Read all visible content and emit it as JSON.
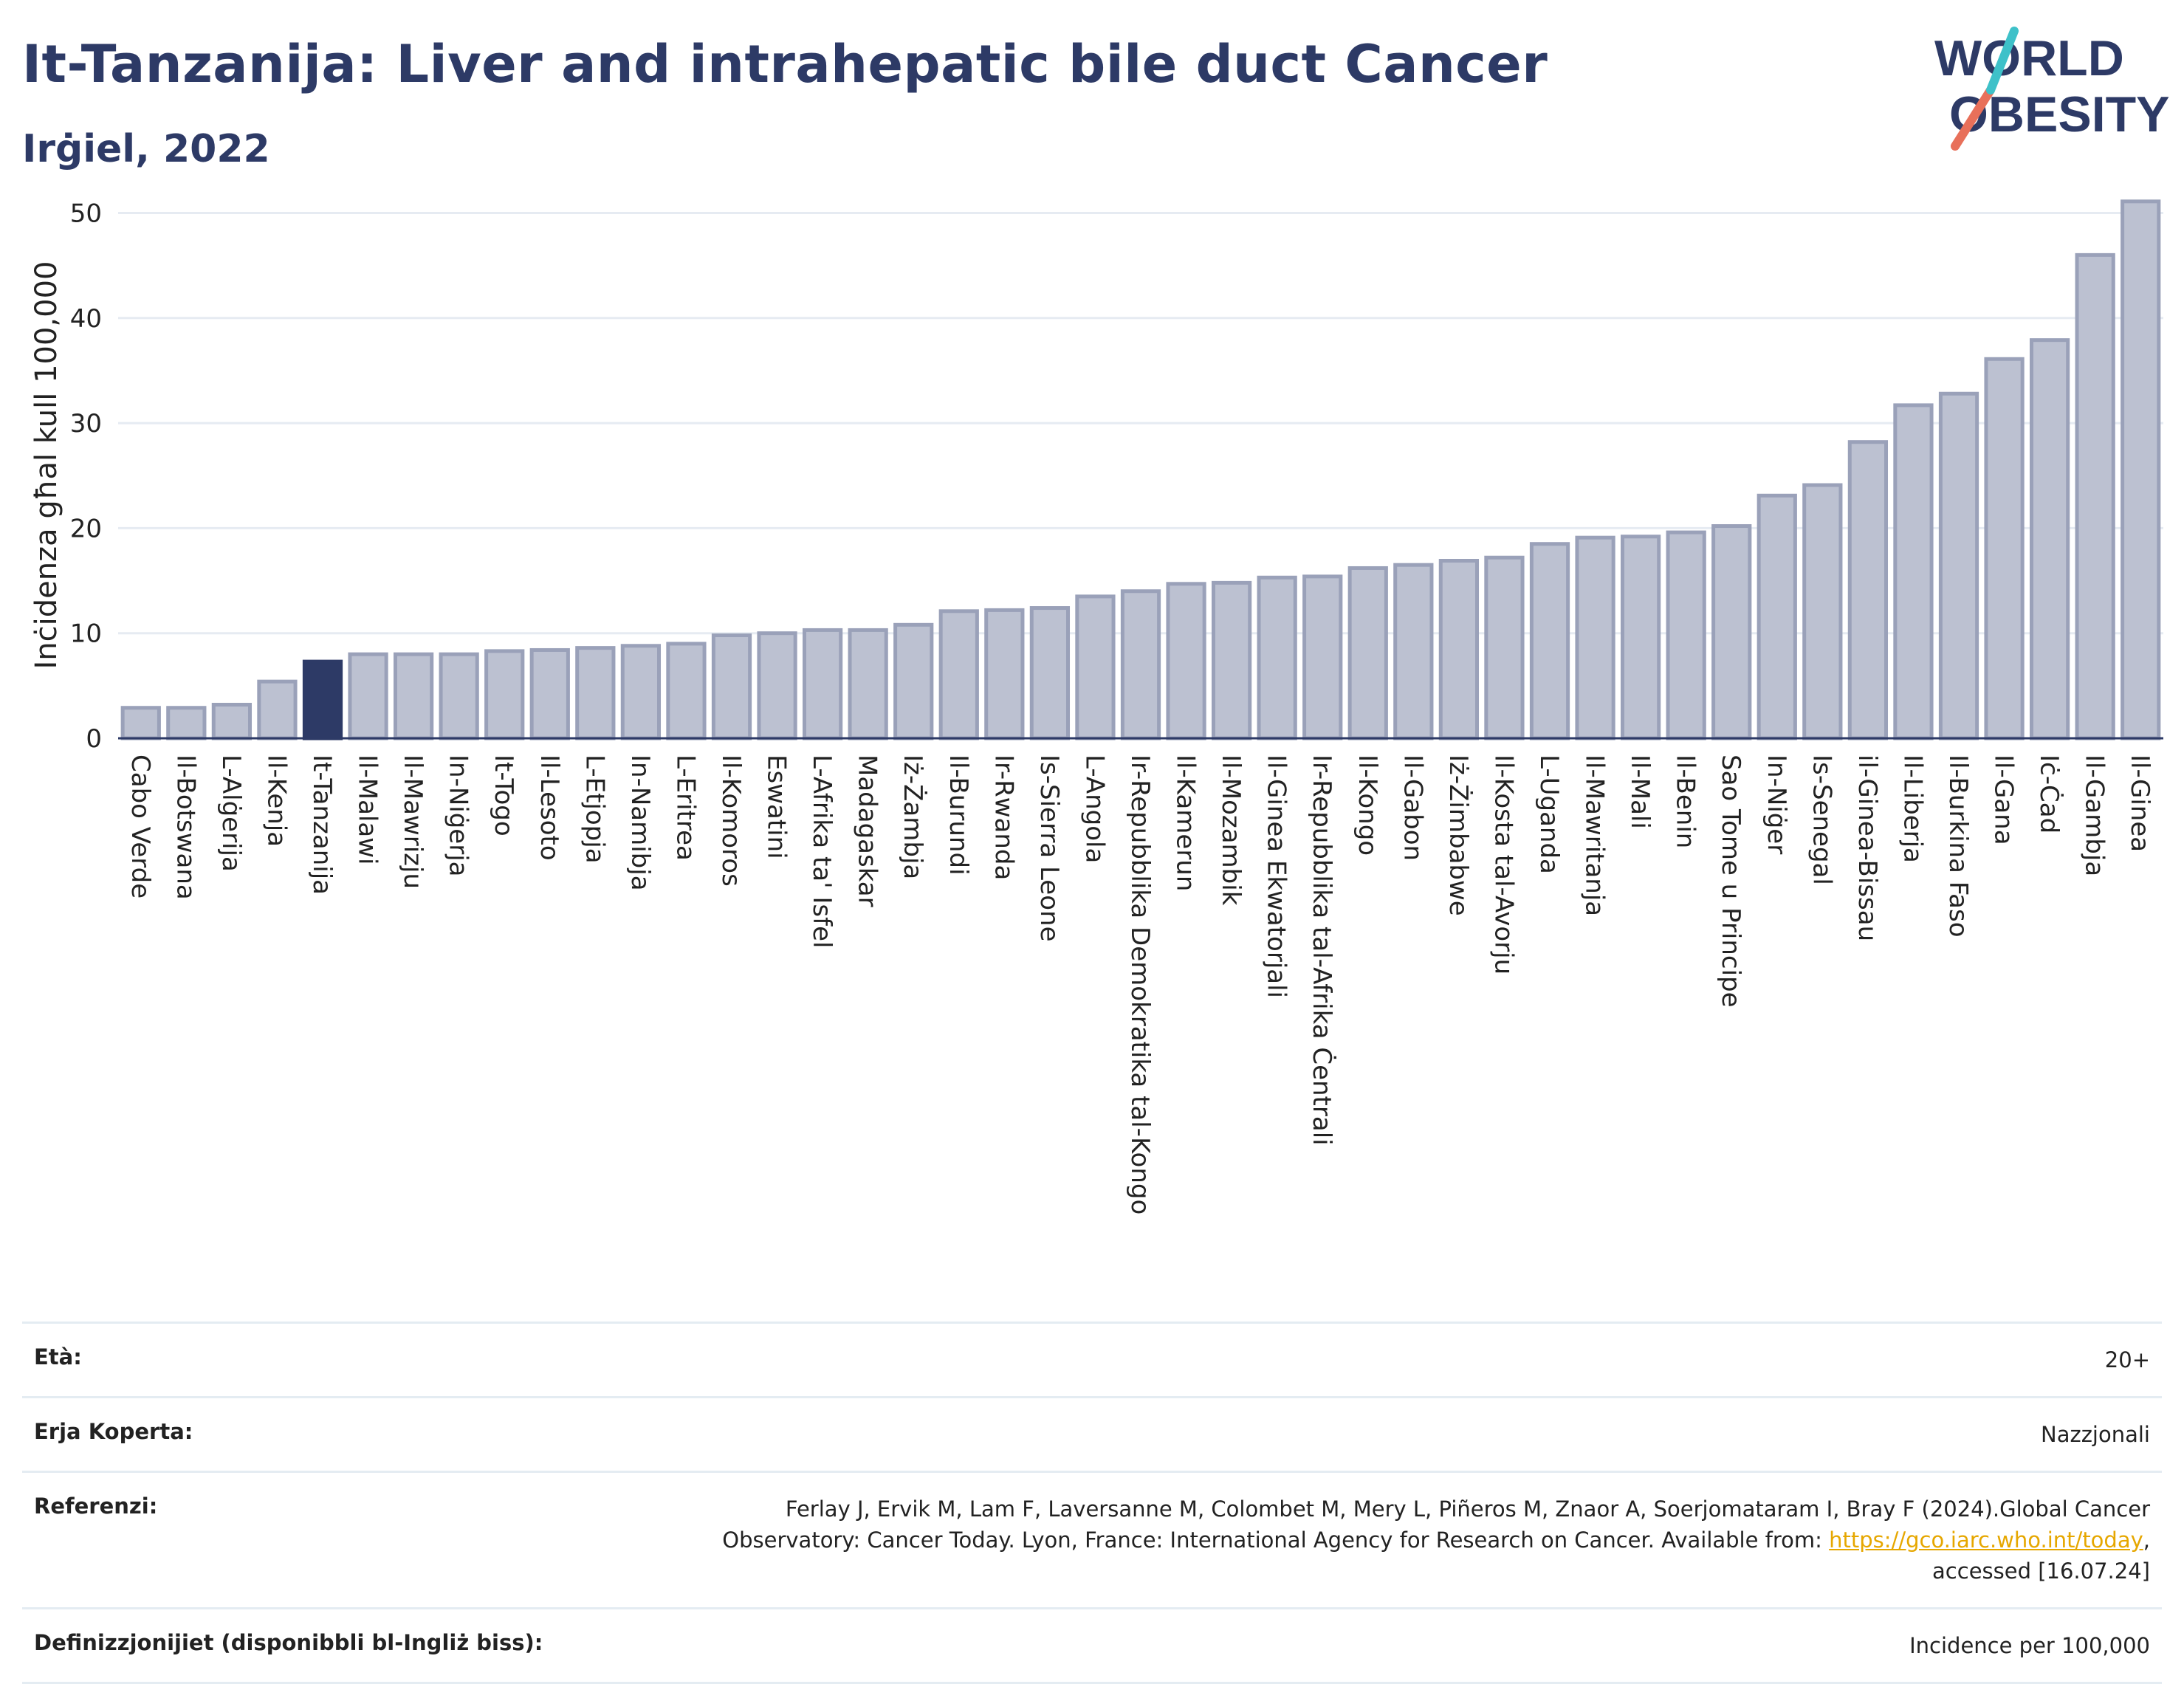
{
  "header": {
    "title": "It-Tanzanija: Liver and intrahepatic bile duct Cancer",
    "subtitle": "Irġiel, 2022"
  },
  "logo": {
    "line1": "WORLD",
    "line2": "OBESITY"
  },
  "colors": {
    "bar": "#bcc1d1",
    "bar_stroke": "#9aa1b9",
    "highlight": "#2d3a66",
    "grid": "#e6ebf2"
  },
  "chart_data": {
    "type": "bar",
    "ylabel": "Inċidenza għal kull 100,000",
    "ylim": [
      0,
      52
    ],
    "yticks": [
      0,
      10,
      20,
      30,
      40,
      50
    ],
    "highlight": "It-Tanzanija",
    "categories": [
      "Cabo Verde",
      "Il-Botswana",
      "L-Alġerija",
      "Il-Kenja",
      "It-Tanzanija",
      "Il-Malawi",
      "Il-Mawrizju",
      "In-Niġerja",
      "It-Togo",
      "Il-Lesoto",
      "L-Etjopja",
      "In-Namibja",
      "L-Eritrea",
      "Il-Komoros",
      "Eswatini",
      "L-Afrika ta' Isfel",
      "Madagaskar",
      "Iż-Żambja",
      "Il-Burundi",
      "Ir-Rwanda",
      "Is-Sierra Leone",
      "L-Angola",
      "Ir-Repubblika Demokratika tal-Kongo",
      "Il-Kamerun",
      "Il-Mozambik",
      "Il-Ginea Ekwatorjali",
      "Ir-Repubblika tal-Afrika Ċentrali",
      "Il-Kongo",
      "Il-Gabon",
      "Iż-Żimbabwe",
      "Il-Kosta tal-Avorju",
      "L-Uganda",
      "Il-Mawritanja",
      "Il-Mali",
      "Il-Benin",
      "Sao Tome u Principe",
      "In-Niġer",
      "Is-Senegal",
      "il-Ginea-Bissau",
      "Il-Liberja",
      "Il-Burkina Faso",
      "Il-Gana",
      "Iċ-Ċad",
      "Il-Gambja",
      "Il-Ginea"
    ],
    "values": [
      2.9,
      2.9,
      3.2,
      5.4,
      7.3,
      8.0,
      8.0,
      8.0,
      8.3,
      8.4,
      8.6,
      8.8,
      9.0,
      9.8,
      10.0,
      10.3,
      10.3,
      10.8,
      12.1,
      12.2,
      12.4,
      13.5,
      14.0,
      14.7,
      14.8,
      15.3,
      15.4,
      16.2,
      16.5,
      16.9,
      17.2,
      18.5,
      19.1,
      19.2,
      19.6,
      20.2,
      23.1,
      24.1,
      28.2,
      31.7,
      32.8,
      36.1,
      37.9,
      46.0,
      51.1
    ]
  },
  "meta": {
    "age_label": "Età:",
    "age_value": "20+",
    "coverage_label": "Erja Koperta:",
    "coverage_value": "Nazzjonali",
    "refs_label": "Referenzi:",
    "refs_line1": "Ferlay J, Ervik M, Lam F, Laversanne M, Colombet M, Mery L, Piñeros M, Znaor A, Soerjomataram I, Bray F (2024).Global Cancer",
    "refs_line2_pre": "Observatory: Cancer Today. Lyon, France: International Agency for Research on Cancer. Available from: ",
    "refs_link": "https://gco.iarc.who.int/today",
    "refs_line2_post": ",",
    "refs_line3": "accessed [16.07.24]",
    "defs_label": "Definizzjonijiet (disponibbli bl-Ingliż biss):",
    "defs_value": "Incidence per 100,000"
  }
}
